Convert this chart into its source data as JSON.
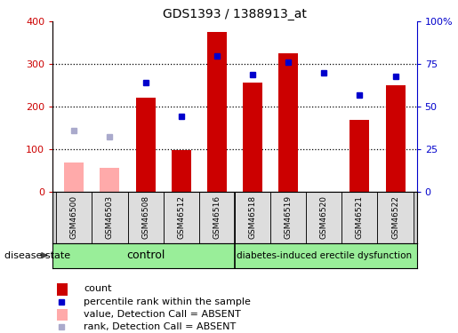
{
  "title": "GDS1393 / 1388913_at",
  "samples": [
    "GSM46500",
    "GSM46503",
    "GSM46508",
    "GSM46512",
    "GSM46516",
    "GSM46518",
    "GSM46519",
    "GSM46520",
    "GSM46521",
    "GSM46522"
  ],
  "count_values": [
    null,
    null,
    220,
    97,
    375,
    257,
    325,
    null,
    168,
    250
  ],
  "count_absent": [
    68,
    55,
    null,
    null,
    null,
    null,
    null,
    null,
    null,
    null
  ],
  "percentile_values": [
    null,
    null,
    64,
    44,
    80,
    69,
    76,
    70,
    57,
    68
  ],
  "percentile_absent": [
    36,
    32,
    null,
    null,
    null,
    null,
    null,
    null,
    null,
    null
  ],
  "ylim_left": [
    0,
    400
  ],
  "ylim_right": [
    0,
    100
  ],
  "yticks_left": [
    0,
    100,
    200,
    300,
    400
  ],
  "yticks_right": [
    0,
    25,
    50,
    75,
    100
  ],
  "yticklabels_right": [
    "0",
    "25",
    "50",
    "75",
    "100%"
  ],
  "bar_color_present": "#cc0000",
  "bar_color_absent": "#ffaaaa",
  "dot_color_present": "#0000cc",
  "dot_color_absent": "#aaaacc",
  "control_group": [
    0,
    1,
    2,
    3,
    4
  ],
  "disease_group": [
    5,
    6,
    7,
    8,
    9
  ],
  "control_label": "control",
  "disease_label": "diabetes-induced erectile dysfunction",
  "group_bg_color": "#99ee99",
  "left_axis_color": "#cc0000",
  "right_axis_color": "#0000cc",
  "disease_state_label": "disease state",
  "fig_width": 5.15,
  "fig_height": 3.75,
  "dpi": 100
}
